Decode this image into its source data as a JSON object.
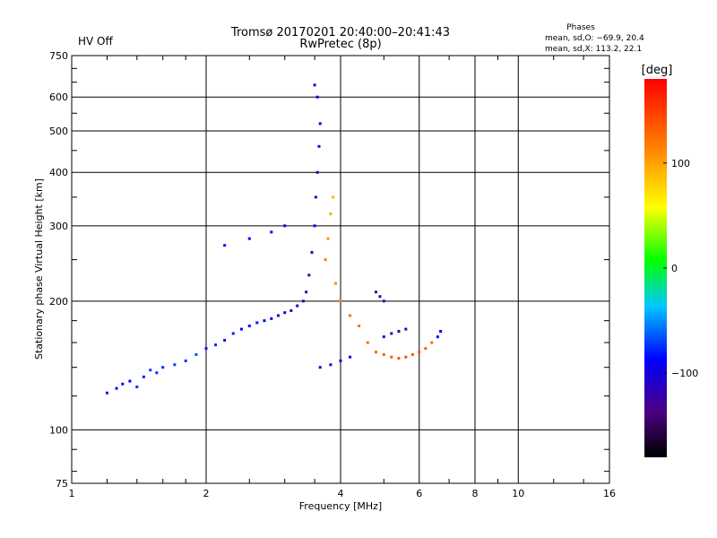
{
  "header": {
    "status": "HV Off",
    "status_color": "#cc0000",
    "title": "Tromsø 20170201 20:40:00–20:41:43",
    "subtitle": "RwPretec (8p)",
    "stats_title": "Phases",
    "stats_o": "mean, sd,O: −69.9, 20.4",
    "stats_x": "mean, sd,X: 113.2, 22.1"
  },
  "chart_data": {
    "type": "scatter",
    "xlabel": "Frequency [MHz]",
    "ylabel": "Stationary phase Virtual Height [km]",
    "x_scale": "log",
    "y_scale": "log",
    "xlim": [
      1,
      16
    ],
    "ylim": [
      75,
      750
    ],
    "x_ticks": [
      1,
      2,
      4,
      6,
      8,
      10,
      16
    ],
    "x_tick_labels": [
      "1",
      "2",
      "4",
      "6",
      "8",
      "10",
      "16"
    ],
    "y_ticks": [
      75,
      100,
      200,
      300,
      400,
      500,
      600,
      750
    ],
    "y_tick_labels": [
      "75",
      "100",
      "200",
      "300",
      "400",
      "500",
      "600",
      "750"
    ],
    "grid": true,
    "colorbar": {
      "label": "[deg]",
      "range": [
        -180,
        180
      ],
      "ticks": [
        100,
        0,
        -100
      ],
      "tick_labels": [
        "100",
        "0",
        "−100"
      ],
      "colors": [
        "#000000",
        "#4b0082",
        "#0000ff",
        "#00c8ff",
        "#00ff00",
        "#ffff00",
        "#ff8000",
        "#ff0000"
      ]
    },
    "series": [
      {
        "description": "O-mode and X-mode echo traces",
        "points": [
          [
            1.2,
            122,
            -85
          ],
          [
            1.26,
            125,
            -88
          ],
          [
            1.3,
            128,
            -85
          ],
          [
            1.35,
            130,
            -90
          ],
          [
            1.4,
            126,
            -80
          ],
          [
            1.45,
            133,
            -82
          ],
          [
            1.5,
            138,
            -75
          ],
          [
            1.55,
            136,
            -78
          ],
          [
            1.6,
            140,
            -80
          ],
          [
            1.7,
            142,
            -75
          ],
          [
            1.8,
            145,
            -78
          ],
          [
            1.9,
            150,
            -72
          ],
          [
            2.0,
            155,
            -85
          ],
          [
            2.1,
            158,
            -80
          ],
          [
            2.2,
            162,
            -88
          ],
          [
            2.3,
            168,
            -82
          ],
          [
            2.4,
            172,
            -92
          ],
          [
            2.5,
            175,
            -90
          ],
          [
            2.6,
            178,
            -85
          ],
          [
            2.7,
            180,
            -95
          ],
          [
            2.8,
            182,
            -92
          ],
          [
            2.9,
            185,
            -100
          ],
          [
            3.0,
            188,
            -105
          ],
          [
            3.1,
            190,
            -110
          ],
          [
            3.2,
            195,
            -108
          ],
          [
            3.3,
            200,
            -112
          ],
          [
            3.35,
            210,
            -115
          ],
          [
            3.4,
            230,
            -118
          ],
          [
            3.45,
            260,
            -115
          ],
          [
            3.5,
            300,
            -112
          ],
          [
            3.52,
            350,
            -110
          ],
          [
            3.55,
            400,
            -108
          ],
          [
            3.58,
            460,
            -105
          ],
          [
            3.6,
            520,
            -100
          ],
          [
            3.55,
            600,
            -102
          ],
          [
            3.5,
            640,
            -100
          ],
          [
            2.2,
            270,
            -85
          ],
          [
            2.5,
            280,
            -90
          ],
          [
            2.8,
            290,
            -95
          ],
          [
            3.0,
            300,
            -100
          ],
          [
            3.6,
            140,
            -110
          ],
          [
            3.8,
            142,
            -115
          ],
          [
            4.0,
            145,
            -108
          ],
          [
            4.2,
            148,
            -110
          ],
          [
            3.7,
            250,
            120
          ],
          [
            3.75,
            280,
            110
          ],
          [
            3.8,
            320,
            100
          ],
          [
            3.85,
            350,
            95
          ],
          [
            3.9,
            220,
            115
          ],
          [
            4.0,
            200,
            120
          ],
          [
            4.2,
            185,
            125
          ],
          [
            4.4,
            175,
            128
          ],
          [
            4.6,
            160,
            130
          ],
          [
            4.8,
            152,
            135
          ],
          [
            5.0,
            150,
            138
          ],
          [
            5.2,
            148,
            140
          ],
          [
            5.4,
            147,
            142
          ],
          [
            5.6,
            148,
            145
          ],
          [
            5.8,
            150,
            140
          ],
          [
            6.0,
            152,
            138
          ],
          [
            6.2,
            155,
            135
          ],
          [
            6.4,
            160,
            130
          ],
          [
            6.6,
            165,
            -95
          ],
          [
            6.7,
            170,
            -90
          ],
          [
            5.0,
            165,
            -110
          ],
          [
            5.2,
            168,
            -115
          ],
          [
            5.4,
            170,
            -112
          ],
          [
            5.6,
            172,
            -110
          ],
          [
            4.8,
            210,
            -130
          ],
          [
            4.9,
            205,
            -128
          ],
          [
            5.0,
            200,
            -125
          ]
        ]
      }
    ]
  }
}
